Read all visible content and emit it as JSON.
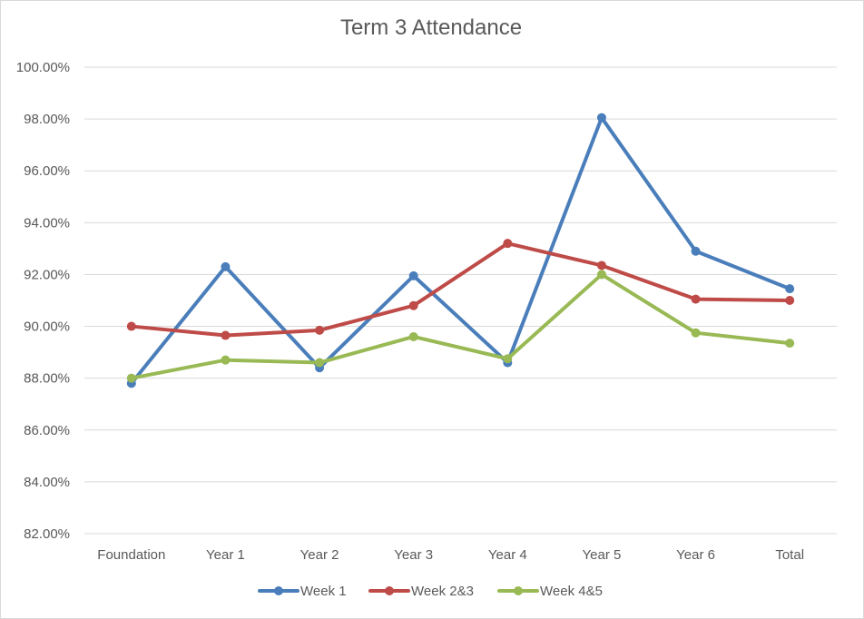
{
  "chart_data": {
    "type": "line",
    "title": "Term 3 Attendance",
    "xlabel": "",
    "ylabel": "",
    "categories": [
      "Foundation",
      "Year 1",
      "Year 2",
      "Year 3",
      "Year 4",
      "Year 5",
      "Year 6",
      "Total"
    ],
    "ylim": [
      82,
      100
    ],
    "y_ticks": [
      "82.00%",
      "84.00%",
      "86.00%",
      "88.00%",
      "90.00%",
      "92.00%",
      "94.00%",
      "96.00%",
      "98.00%",
      "100.00%"
    ],
    "y_tick_values": [
      82,
      84,
      86,
      88,
      90,
      92,
      94,
      96,
      98,
      100
    ],
    "grid": true,
    "legend_position": "bottom",
    "series": [
      {
        "name": "Week 1",
        "color": "#4a7ebb",
        "values": [
          87.8,
          92.3,
          88.4,
          91.95,
          88.6,
          98.05,
          92.9,
          91.45
        ]
      },
      {
        "name": "Week 2&3",
        "color": "#be4b48",
        "values": [
          90.0,
          89.65,
          89.85,
          90.8,
          93.2,
          92.35,
          91.05,
          91.0
        ]
      },
      {
        "name": "Week 4&5",
        "color": "#98b954",
        "values": [
          88.0,
          88.7,
          88.6,
          89.6,
          88.75,
          92.0,
          89.75,
          89.35
        ]
      }
    ]
  }
}
